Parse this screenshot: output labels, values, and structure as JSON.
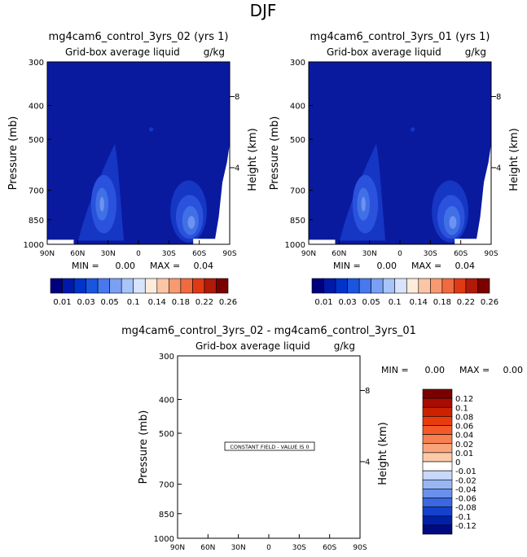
{
  "page": {
    "title": "DJF"
  },
  "chart_data": [
    {
      "type": "heatmap",
      "title": "mg4cam6_control_3yrs_02 (yrs 1)",
      "subtitle": "Grid-box average liquid",
      "units": "g/kg",
      "ylabel": "Pressure (mb)",
      "ylabel_right": "Height (km)",
      "xticks": [
        "90N",
        "60N",
        "30N",
        "0",
        "30S",
        "60S",
        "90S"
      ],
      "yticks": [
        "300",
        "400",
        "500",
        "700",
        "850",
        "1000"
      ],
      "yticks_right": [
        "8",
        "4"
      ],
      "ylim": [
        1000,
        300
      ],
      "min_label": "MIN =",
      "min_value": "0.00",
      "max_label": "MAX =",
      "max_value": "0.04",
      "colorbar_labels": [
        "0.01",
        "0.03",
        "0.05",
        "0.1",
        "0.14",
        "0.18",
        "0.22",
        "0.26"
      ],
      "colorbar_colors": [
        "#00007f",
        "#0019a8",
        "#0033cc",
        "#1a55e0",
        "#4878ee",
        "#7aa0f4",
        "#a8c4f8",
        "#d8e4fb",
        "#fdebdc",
        "#fbc6a6",
        "#f79a70",
        "#f06a40",
        "#e03a14",
        "#b01a08",
        "#7a0000"
      ]
    },
    {
      "type": "heatmap",
      "title": "mg4cam6_control_3yrs_01 (yrs 1)",
      "subtitle": "Grid-box average liquid",
      "units": "g/kg",
      "ylabel": "Pressure (mb)",
      "ylabel_right": "Height (km)",
      "xticks": [
        "90N",
        "60N",
        "30N",
        "0",
        "30S",
        "60S",
        "90S"
      ],
      "yticks": [
        "300",
        "400",
        "500",
        "700",
        "850",
        "1000"
      ],
      "yticks_right": [
        "8",
        "4"
      ],
      "ylim": [
        1000,
        300
      ],
      "min_label": "MIN =",
      "min_value": "0.00",
      "max_label": "MAX =",
      "max_value": "0.04",
      "colorbar_labels": [
        "0.01",
        "0.03",
        "0.05",
        "0.1",
        "0.14",
        "0.18",
        "0.22",
        "0.26"
      ],
      "colorbar_colors": [
        "#00007f",
        "#0019a8",
        "#0033cc",
        "#1a55e0",
        "#4878ee",
        "#7aa0f4",
        "#a8c4f8",
        "#d8e4fb",
        "#fdebdc",
        "#fbc6a6",
        "#f79a70",
        "#f06a40",
        "#e03a14",
        "#b01a08",
        "#7a0000"
      ]
    },
    {
      "type": "heatmap",
      "title": "mg4cam6_control_3yrs_02 - mg4cam6_control_3yrs_01",
      "subtitle": "Grid-box average liquid",
      "units": "g/kg",
      "ylabel": "Pressure (mb)",
      "ylabel_right": "Height (km)",
      "xticks": [
        "90N",
        "60N",
        "30N",
        "0",
        "30S",
        "60S",
        "90S"
      ],
      "yticks": [
        "300",
        "400",
        "500",
        "700",
        "850",
        "1000"
      ],
      "yticks_right": [
        "8",
        "4"
      ],
      "ylim": [
        1000,
        300
      ],
      "min_label": "MIN =",
      "min_value": "0.00",
      "max_label": "MAX =",
      "max_value": "0.00",
      "note": "CONSTANT FIELD - VALUE IS 0",
      "colorbar_labels": [
        "0.12",
        "0.1",
        "0.08",
        "0.06",
        "0.04",
        "0.02",
        "0.01",
        "0",
        "-0.01",
        "-0.02",
        "-0.04",
        "-0.06",
        "-0.08",
        "-0.1",
        "-0.12"
      ],
      "colorbar_colors": [
        "#7a0000",
        "#a80c02",
        "#cc2200",
        "#e83c0e",
        "#f45a28",
        "#f78050",
        "#f9a47a",
        "#fccaa8",
        "#ffffff",
        "#c8d8f8",
        "#98b6f4",
        "#6890ec",
        "#3a68e0",
        "#1440cc",
        "#0020a8",
        "#000a80"
      ]
    }
  ]
}
